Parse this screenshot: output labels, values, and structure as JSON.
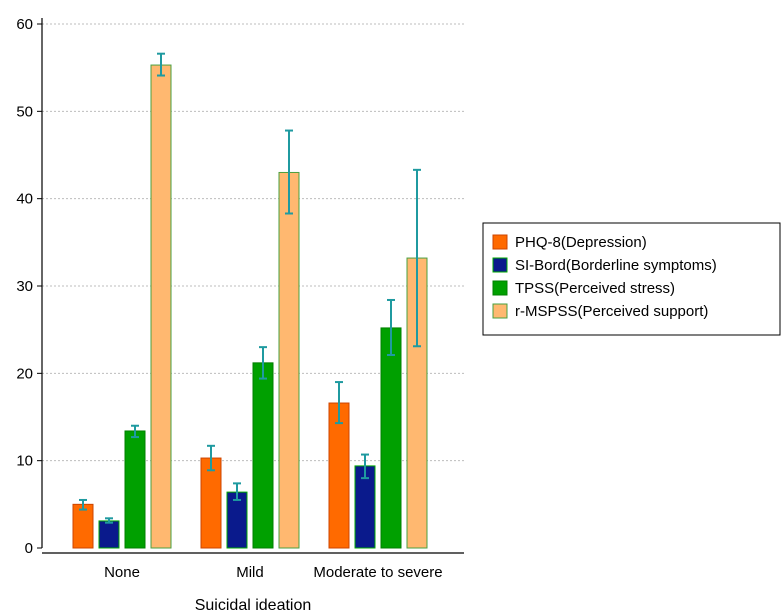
{
  "chart_data": {
    "type": "bar",
    "title": "",
    "xlabel": "Suicidal ideation",
    "ylabel": "",
    "categories": [
      "None",
      "Mild",
      "Moderate to severe"
    ],
    "ylim": [
      0,
      60
    ],
    "yticks": [
      "0",
      "10",
      "20",
      "30",
      "40",
      "50",
      "60"
    ],
    "grid": "horizontal dotted",
    "legend_position": "right",
    "error_bar_color": "#1f9aa0",
    "series": [
      {
        "name": "PHQ-8(Depression)",
        "color": "#ff6a00",
        "border": "#cc4400",
        "values": [
          5.0,
          10.3,
          16.6
        ],
        "err_low": [
          4.4,
          8.9,
          14.3
        ],
        "err_high": [
          5.5,
          11.7,
          19.0
        ]
      },
      {
        "name": "SI-Bord(Borderline symptoms)",
        "color": "#0a1a8c",
        "border": "#00aa00",
        "values": [
          3.1,
          6.4,
          9.4
        ],
        "err_low": [
          2.9,
          5.5,
          8.0
        ],
        "err_high": [
          3.4,
          7.4,
          10.7
        ]
      },
      {
        "name": "TPSS(Perceived stress)",
        "color": "#00a000",
        "border": "#008000",
        "values": [
          13.4,
          21.2,
          25.2
        ],
        "err_low": [
          12.7,
          19.4,
          22.1
        ],
        "err_high": [
          14.0,
          23.0,
          28.4
        ]
      },
      {
        "name": "r-MSPSS(Perceived support)",
        "color": "#ffb870",
        "border": "#4aa040",
        "values": [
          55.3,
          43.0,
          33.2
        ],
        "err_low": [
          54.1,
          38.3,
          23.1
        ],
        "err_high": [
          56.6,
          47.8,
          43.3
        ]
      }
    ]
  }
}
